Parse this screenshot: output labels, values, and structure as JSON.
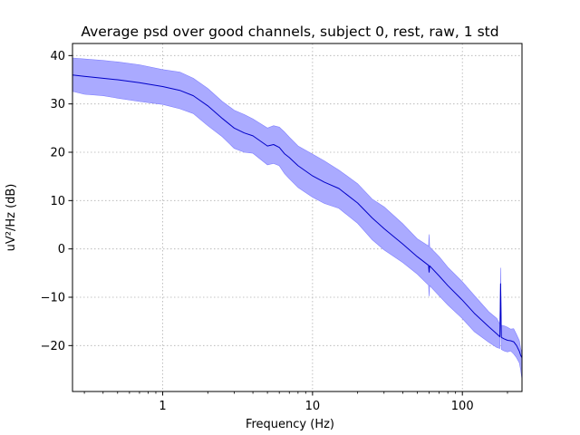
{
  "chart_data": {
    "type": "area",
    "title": "Average psd over good channels, subject 0, rest, raw, 1 std",
    "xlabel": "Frequency (Hz)",
    "ylabel": "uV²/Hz (dB)",
    "xscale": "log",
    "xlim": [
      0.25,
      250
    ],
    "ylim": [
      -29.5,
      42.5
    ],
    "grid": true,
    "x_ticks": [
      {
        "value": 1,
        "label": "1"
      },
      {
        "value": 10,
        "label": "10"
      },
      {
        "value": 100,
        "label": "100"
      }
    ],
    "y_ticks": [
      {
        "value": 40,
        "label": "40"
      },
      {
        "value": 30,
        "label": "30"
      },
      {
        "value": 20,
        "label": "20"
      },
      {
        "value": 10,
        "label": "10"
      },
      {
        "value": 0,
        "label": "0"
      },
      {
        "value": -10,
        "label": "−10"
      },
      {
        "value": -20,
        "label": "−20"
      }
    ],
    "colors": {
      "line": "#0000c8",
      "band": "#aaaaff",
      "band_edge": "#7f7fff"
    },
    "series": [
      {
        "x": [
          0.25,
          0.3,
          0.4,
          0.5,
          0.7,
          1.0,
          1.3,
          1.6,
          2.0,
          2.5,
          3.0,
          3.5,
          4.0,
          5.0,
          5.5,
          6.0,
          6.5,
          7.0,
          8.0,
          10.0,
          12.0,
          15.0,
          20.0,
          25.0,
          30.0,
          40.0,
          50.0,
          59.5,
          60.0,
          60.5,
          70.0,
          80.0,
          100.0,
          120.0,
          150.0,
          170.0,
          178.0,
          180.0,
          182.0,
          190.0,
          200.0,
          210.0,
          220.0,
          230.0,
          240.0,
          245.0,
          250.0
        ],
        "y": [
          36.0,
          35.7,
          35.3,
          35.0,
          34.4,
          33.6,
          32.8,
          31.7,
          29.6,
          27.0,
          25.0,
          24.0,
          23.4,
          21.3,
          21.6,
          21.0,
          19.7,
          18.9,
          17.2,
          15.1,
          13.8,
          12.5,
          9.5,
          6.4,
          4.2,
          1.0,
          -1.6,
          -3.4,
          -4.8,
          -3.5,
          -5.6,
          -7.6,
          -10.6,
          -13.3,
          -16.1,
          -17.6,
          -18.2,
          -7.2,
          -18.3,
          -18.6,
          -18.9,
          -19.0,
          -19.2,
          -20.0,
          -21.2,
          -22.0,
          -22.5
        ],
        "upper": [
          39.5,
          39.3,
          39.0,
          38.7,
          38.1,
          37.1,
          36.6,
          35.3,
          33.2,
          30.5,
          28.7,
          27.8,
          26.9,
          25.0,
          25.5,
          25.2,
          24.2,
          23.1,
          21.3,
          19.6,
          18.2,
          16.3,
          13.5,
          10.3,
          8.7,
          5.2,
          2.1,
          0.6,
          3.0,
          0.4,
          -1.6,
          -3.8,
          -6.8,
          -9.6,
          -13.0,
          -14.4,
          -15.6,
          -3.9,
          -15.8,
          -15.9,
          -16.2,
          -16.6,
          -16.5,
          -17.7,
          -19.0,
          -20.6,
          -21.5
        ],
        "lower": [
          32.6,
          32.0,
          31.7,
          31.2,
          30.5,
          29.9,
          29.0,
          28.0,
          25.5,
          23.2,
          20.8,
          20.0,
          19.8,
          17.4,
          17.7,
          17.2,
          15.6,
          14.5,
          12.7,
          10.7,
          9.4,
          8.4,
          5.3,
          1.9,
          -0.2,
          -2.8,
          -5.2,
          -7.5,
          -9.8,
          -7.6,
          -9.7,
          -11.6,
          -14.4,
          -17.1,
          -19.3,
          -20.4,
          -20.6,
          -12.3,
          -20.8,
          -21.1,
          -21.3,
          -21.1,
          -21.7,
          -22.5,
          -23.6,
          -25.0,
          -27.0
        ]
      }
    ]
  }
}
